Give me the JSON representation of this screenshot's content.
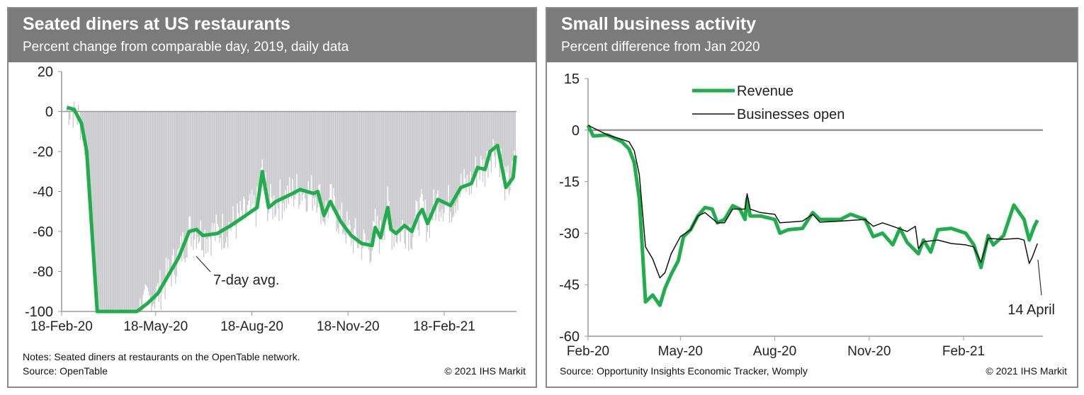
{
  "chart_data": [
    {
      "type": "line",
      "title": "Seated diners at US restaurants",
      "subtitle": "Percent change from comparable day, 2019, daily data",
      "ylim": [
        -100,
        20
      ],
      "yticks": [
        20,
        0,
        -20,
        -40,
        -60,
        -80,
        -100
      ],
      "xticks": [
        {
          "date": "2020-02-18",
          "label": "18-Feb-20"
        },
        {
          "date": "2020-05-18",
          "label": "18-May-20"
        },
        {
          "date": "2020-08-18",
          "label": "18-Aug-20"
        },
        {
          "date": "2020-11-18",
          "label": "18-Nov-20"
        },
        {
          "date": "2021-02-18",
          "label": "18-Feb-21"
        }
      ],
      "xlim": [
        "2020-02-18",
        "2021-05-01"
      ],
      "series": [
        {
          "name": "7-day avg.",
          "color": "#1fae4b",
          "points": [
            [
              "2020-02-23",
              2
            ],
            [
              "2020-03-01",
              1
            ],
            [
              "2020-03-08",
              -6
            ],
            [
              "2020-03-13",
              -20
            ],
            [
              "2020-03-18",
              -60
            ],
            [
              "2020-03-23",
              -100
            ],
            [
              "2020-04-30",
              -100
            ],
            [
              "2020-05-10",
              -96
            ],
            [
              "2020-05-20",
              -91
            ],
            [
              "2020-05-30",
              -82
            ],
            [
              "2020-06-09",
              -73
            ],
            [
              "2020-06-19",
              -60
            ],
            [
              "2020-06-26",
              -59
            ],
            [
              "2020-07-02",
              -62
            ],
            [
              "2020-07-16",
              -61
            ],
            [
              "2020-07-29",
              -57
            ],
            [
              "2020-08-12",
              -52
            ],
            [
              "2020-08-23",
              -48
            ],
            [
              "2020-08-28",
              -30
            ],
            [
              "2020-09-03",
              -48
            ],
            [
              "2020-09-10",
              -45
            ],
            [
              "2020-09-26",
              -41
            ],
            [
              "2020-10-03",
              -39
            ],
            [
              "2020-10-16",
              -41
            ],
            [
              "2020-10-20",
              -40
            ],
            [
              "2020-10-26",
              -52
            ],
            [
              "2020-11-01",
              -45
            ],
            [
              "2020-11-11",
              -55
            ],
            [
              "2020-11-21",
              -62
            ],
            [
              "2020-12-01",
              -66
            ],
            [
              "2020-12-11",
              -67
            ],
            [
              "2020-12-14",
              -58
            ],
            [
              "2020-12-19",
              -63
            ],
            [
              "2020-12-26",
              -48
            ],
            [
              "2020-12-29",
              -59
            ],
            [
              "2021-01-03",
              -61
            ],
            [
              "2021-01-11",
              -57
            ],
            [
              "2021-01-18",
              -60
            ],
            [
              "2021-01-24",
              -52
            ],
            [
              "2021-01-28",
              -49
            ],
            [
              "2021-02-02",
              -56
            ],
            [
              "2021-02-12",
              -44
            ],
            [
              "2021-02-24",
              -47
            ],
            [
              "2021-03-06",
              -38
            ],
            [
              "2021-03-16",
              -36
            ],
            [
              "2021-03-22",
              -28
            ],
            [
              "2021-03-29",
              -29
            ],
            [
              "2021-04-03",
              -20
            ],
            [
              "2021-04-10",
              -17
            ],
            [
              "2021-04-15",
              -30
            ],
            [
              "2021-04-18",
              -38
            ],
            [
              "2021-04-25",
              -33
            ],
            [
              "2021-04-27",
              -22
            ]
          ]
        },
        {
          "name": "Daily",
          "color": "#c8c8cc"
        }
      ],
      "annotation": "7-day avg.",
      "notes": "Notes: Seated diners at restaurants on the OpenTable network.",
      "source": "Source: OpenTable",
      "copyright": "© 2021 IHS Markit"
    },
    {
      "type": "line",
      "title": "Small business activity",
      "subtitle": "Percent difference from Jan 2020",
      "ylim": [
        -60,
        15
      ],
      "yticks": [
        15,
        0,
        -15,
        -30,
        -45,
        -60
      ],
      "xticks": [
        {
          "date": "2020-02-01",
          "label": "Feb-20"
        },
        {
          "date": "2020-05-01",
          "label": "May-20"
        },
        {
          "date": "2020-08-01",
          "label": "Aug-20"
        },
        {
          "date": "2020-11-01",
          "label": "Nov-20"
        },
        {
          "date": "2021-02-01",
          "label": "Feb-21"
        }
      ],
      "xlim": [
        "2020-02-01",
        "2021-04-20"
      ],
      "series": [
        {
          "name": "Revenue",
          "color": "#1fae4b",
          "points": [
            [
              "2020-02-01",
              1.4
            ],
            [
              "2020-02-06",
              -1.7
            ],
            [
              "2020-02-20",
              -1.4
            ],
            [
              "2020-03-05",
              -3.4
            ],
            [
              "2020-03-12",
              -5.5
            ],
            [
              "2020-03-17",
              -9.5
            ],
            [
              "2020-03-22",
              -20
            ],
            [
              "2020-03-28",
              -50
            ],
            [
              "2020-04-04",
              -48
            ],
            [
              "2020-04-11",
              -51
            ],
            [
              "2020-04-16",
              -46
            ],
            [
              "2020-04-22",
              -42
            ],
            [
              "2020-04-29",
              -38
            ],
            [
              "2020-05-04",
              -31
            ],
            [
              "2020-05-11",
              -29
            ],
            [
              "2020-05-18",
              -25
            ],
            [
              "2020-05-25",
              -22.5
            ],
            [
              "2020-06-01",
              -23
            ],
            [
              "2020-06-06",
              -27
            ],
            [
              "2020-06-13",
              -26
            ],
            [
              "2020-06-21",
              -22
            ],
            [
              "2020-06-28",
              -23
            ],
            [
              "2020-07-03",
              -26
            ],
            [
              "2020-07-05",
              -20
            ],
            [
              "2020-07-08",
              -25
            ],
            [
              "2020-07-18",
              -25
            ],
            [
              "2020-08-01",
              -26
            ],
            [
              "2020-08-06",
              -30
            ],
            [
              "2020-08-14",
              -29
            ],
            [
              "2020-08-28",
              -28.6
            ],
            [
              "2020-09-07",
              -24
            ],
            [
              "2020-09-14",
              -26
            ],
            [
              "2020-09-24",
              -26
            ],
            [
              "2020-10-04",
              -26
            ],
            [
              "2020-10-14",
              -24.5
            ],
            [
              "2020-10-28",
              -26
            ],
            [
              "2020-11-05",
              -31
            ],
            [
              "2020-11-14",
              -30
            ],
            [
              "2020-11-24",
              -33.4
            ],
            [
              "2020-12-01",
              -28.6
            ],
            [
              "2020-12-08",
              -32.7
            ],
            [
              "2020-12-19",
              -36
            ],
            [
              "2020-12-24",
              -32
            ],
            [
              "2020-12-31",
              -35.5
            ],
            [
              "2021-01-07",
              -29
            ],
            [
              "2021-01-20",
              -28.6
            ],
            [
              "2021-02-03",
              -30
            ],
            [
              "2021-02-11",
              -33.4
            ],
            [
              "2021-02-18",
              -40
            ],
            [
              "2021-02-25",
              -30.7
            ],
            [
              "2021-03-02",
              -33.4
            ],
            [
              "2021-03-12",
              -30.7
            ],
            [
              "2021-03-22",
              -21.8
            ],
            [
              "2021-04-01",
              -26
            ],
            [
              "2021-04-06",
              -32
            ],
            [
              "2021-04-11",
              -28
            ],
            [
              "2021-04-14",
              -26.2
            ]
          ]
        },
        {
          "name": "Businesses open",
          "color": "#111111",
          "points": [
            [
              "2020-02-01",
              1.4
            ],
            [
              "2020-02-20",
              -1.4
            ],
            [
              "2020-03-05",
              -2.7
            ],
            [
              "2020-03-12",
              -3.4
            ],
            [
              "2020-03-17",
              -6
            ],
            [
              "2020-03-22",
              -13
            ],
            [
              "2020-03-28",
              -34
            ],
            [
              "2020-04-04",
              -37.5
            ],
            [
              "2020-04-11",
              -43
            ],
            [
              "2020-04-16",
              -41.5
            ],
            [
              "2020-04-22",
              -36
            ],
            [
              "2020-05-01",
              -31
            ],
            [
              "2020-05-11",
              -29
            ],
            [
              "2020-05-18",
              -25
            ],
            [
              "2020-05-25",
              -24
            ],
            [
              "2020-06-06",
              -27
            ],
            [
              "2020-06-13",
              -27
            ],
            [
              "2020-06-21",
              -23
            ],
            [
              "2020-07-03",
              -23
            ],
            [
              "2020-07-05",
              -18.5
            ],
            [
              "2020-07-08",
              -23
            ],
            [
              "2020-07-18",
              -24
            ],
            [
              "2020-08-01",
              -24.5
            ],
            [
              "2020-08-06",
              -27
            ],
            [
              "2020-08-28",
              -26.5
            ],
            [
              "2020-09-07",
              -24.5
            ],
            [
              "2020-09-14",
              -26.8
            ],
            [
              "2020-10-04",
              -26.5
            ],
            [
              "2020-10-28",
              -26
            ],
            [
              "2020-11-05",
              -28
            ],
            [
              "2020-11-14",
              -27
            ],
            [
              "2020-11-24",
              -28
            ],
            [
              "2020-12-08",
              -29.5
            ],
            [
              "2020-12-16",
              -28
            ],
            [
              "2020-12-19",
              -34.5
            ],
            [
              "2020-12-24",
              -32.5
            ],
            [
              "2021-01-07",
              -32
            ],
            [
              "2021-01-20",
              -33
            ],
            [
              "2021-02-03",
              -33.4
            ],
            [
              "2021-02-11",
              -34
            ],
            [
              "2021-02-18",
              -38.5
            ],
            [
              "2021-02-25",
              -31.5
            ],
            [
              "2021-03-12",
              -31.8
            ],
            [
              "2021-03-26",
              -31.5
            ],
            [
              "2021-04-01",
              -32
            ],
            [
              "2021-04-06",
              -38.8
            ],
            [
              "2021-04-09",
              -37
            ],
            [
              "2021-04-14",
              -33
            ]
          ]
        }
      ],
      "annotation": "14 April",
      "source": "Source: Opportunity Insights Economic Tracker, Womply",
      "copyright": "© 2021 IHS Markit"
    }
  ]
}
